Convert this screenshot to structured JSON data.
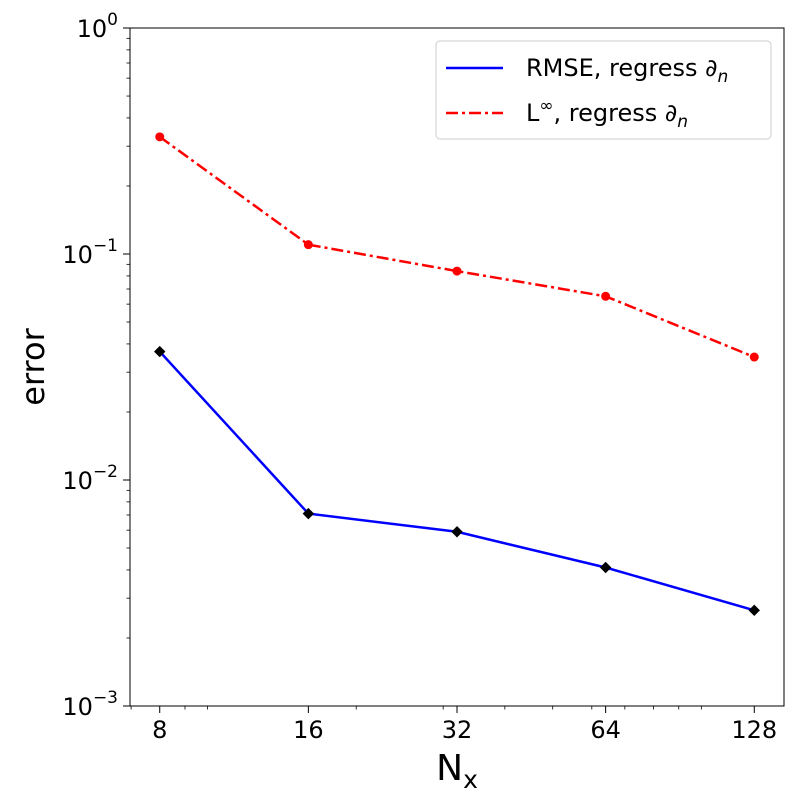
{
  "chart_data": {
    "type": "line",
    "xscale": "log2",
    "yscale": "log10",
    "xlabel": "N",
    "xlabel_sub": "x",
    "ylabel": "error",
    "x": [
      8,
      16,
      32,
      64,
      128
    ],
    "x_tick_labels": [
      "8",
      "16",
      "32",
      "64",
      "128"
    ],
    "ylim": [
      0.001,
      1
    ],
    "y_ticks": [
      {
        "base": "10",
        "exp": "0"
      },
      {
        "base": "10",
        "exp": "−1"
      },
      {
        "base": "10",
        "exp": "−2"
      },
      {
        "base": "10",
        "exp": "−3"
      }
    ],
    "legend_placement": "upper-right",
    "series": [
      {
        "name": "RMSE, regress ∂",
        "name_sub": "n",
        "values": [
          0.037,
          0.0071,
          0.0059,
          0.0041,
          0.00265
        ],
        "color": "#0000ff",
        "linestyle": "solid",
        "marker": "diamond",
        "marker_color": "#000000"
      },
      {
        "name": "L",
        "name_sup": "∞",
        "name_rest": ", regress ∂",
        "name_sub": "n",
        "values": [
          0.33,
          0.11,
          0.084,
          0.065,
          0.035
        ],
        "color": "#ff0000",
        "linestyle": "dashdot",
        "marker": "circle",
        "marker_color": "#ff0000"
      }
    ]
  }
}
